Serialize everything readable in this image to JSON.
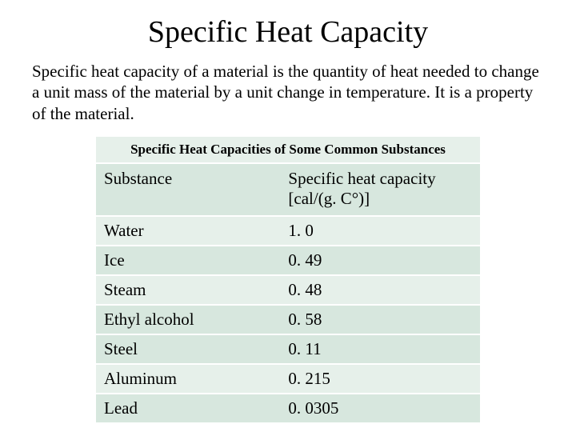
{
  "title": "Specific Heat Capacity",
  "body": "Specific heat capacity of a material is the quantity of heat needed to change a unit mass of the material by a unit change in temperature. It is a property of the material.",
  "table": {
    "caption": "Specific Heat Capacities of Some Common Substances",
    "colors": {
      "band_light": "#e6f0ea",
      "band_dark": "#d7e7de",
      "sep": "#ffffff",
      "text": "#000000"
    },
    "columns": [
      "Substance",
      "Specific heat capacity [cal/(g. C°)]"
    ],
    "rows": [
      [
        "Water",
        "1. 0"
      ],
      [
        "Ice",
        "0. 49"
      ],
      [
        "Steam",
        "0. 48"
      ],
      [
        "Ethyl alcohol",
        "0. 58"
      ],
      [
        "Steel",
        "0. 11"
      ],
      [
        "Aluminum",
        "0. 215"
      ],
      [
        "Lead",
        "0. 0305"
      ]
    ]
  }
}
